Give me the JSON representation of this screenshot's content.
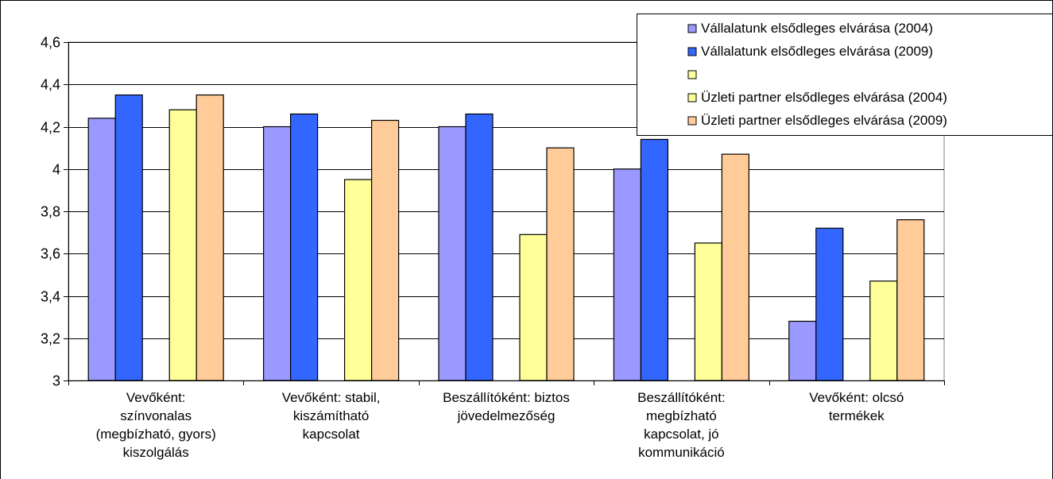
{
  "chart_data": {
    "type": "bar",
    "categories": [
      [
        "Vevőként:",
        "színvonalas",
        "(megbízható, gyors)",
        "kiszolgálás"
      ],
      [
        "Vevőként: stabil,",
        "kiszámítható",
        "kapcsolat"
      ],
      [
        "Beszállítóként: biztos",
        "jövedelmezőség"
      ],
      [
        "Beszállítóként:",
        "megbízható",
        "kapcsolat, jó",
        "kommunikáció"
      ],
      [
        "Vevőként: olcsó",
        "termékek"
      ]
    ],
    "series": [
      {
        "name": "Vállalatunk elsődleges elvárása (2004)",
        "color": "#9999ff",
        "values": [
          4.24,
          4.2,
          4.2,
          4.0,
          3.28
        ]
      },
      {
        "name": "Vállalatunk elsődleges elvárása (2009)",
        "color": "#3366ff",
        "values": [
          4.35,
          4.26,
          4.26,
          4.14,
          3.72
        ]
      },
      {
        "name": "",
        "color": "#ffff99",
        "values": [
          null,
          null,
          null,
          null,
          null
        ]
      },
      {
        "name": "Üzleti partner elsődleges elvárása (2004)",
        "color": "#ffff99",
        "values": [
          4.28,
          3.95,
          3.69,
          3.65,
          3.47
        ]
      },
      {
        "name": "Üzleti partner elsődleges elvárása (2009)",
        "color": "#ffcc99",
        "values": [
          4.35,
          4.23,
          4.1,
          4.07,
          3.76
        ]
      }
    ],
    "yticks": [
      "3",
      "3,2",
      "3,4",
      "3,6",
      "3,8",
      "4",
      "4,2",
      "4,4",
      "4,6"
    ],
    "ylim": [
      3,
      4.6
    ],
    "grid": true,
    "legend": "top-right",
    "title": "",
    "xlabel": "",
    "ylabel": ""
  }
}
